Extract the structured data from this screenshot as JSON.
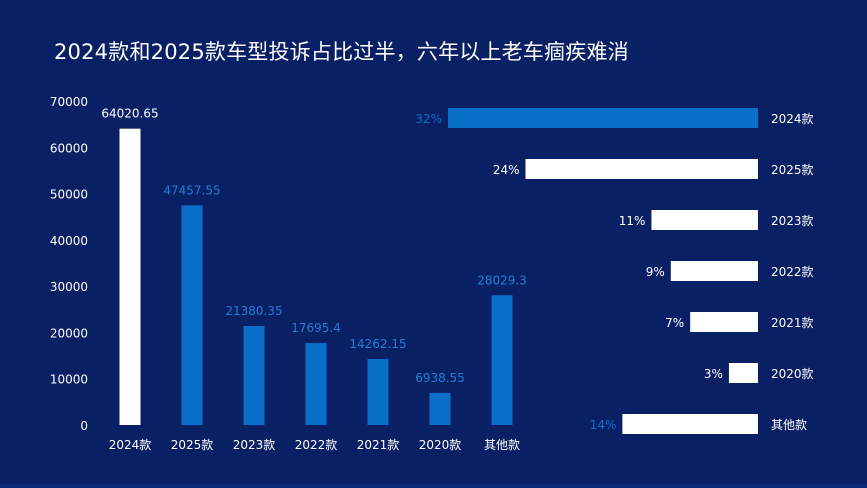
{
  "title": "2024款和2025款车型投诉占比过半，六年以上老车痼疾难消",
  "colors": {
    "background": "#0a2064",
    "white": "#ffffff",
    "blue": "#0a6fc9",
    "blue_label": "#1f7fd6"
  },
  "chart_data": [
    {
      "type": "bar",
      "categories": [
        "2024款",
        "2025款",
        "2023款",
        "2022款",
        "2021款",
        "2020款",
        "其他款"
      ],
      "values": [
        64020.65,
        47457.55,
        21380.35,
        17695.4,
        14262.15,
        6938.55,
        28029.3
      ],
      "value_labels": [
        "64020.65",
        "47457.55",
        "21380.35",
        "17695.4",
        "14262.15",
        "6938.55",
        "28029.3"
      ],
      "bar_colors": [
        "white",
        "blue",
        "blue",
        "blue",
        "blue",
        "blue",
        "blue"
      ],
      "ylim": [
        0,
        70000
      ],
      "yticks": [
        0,
        10000,
        20000,
        30000,
        40000,
        50000,
        60000,
        70000
      ],
      "title": "",
      "xlabel": "",
      "ylabel": "",
      "grid": false
    },
    {
      "type": "bar",
      "orientation": "horizontal",
      "categories": [
        "2024款",
        "2025款",
        "2023款",
        "2022款",
        "2021款",
        "2020款",
        "其他款"
      ],
      "values": [
        32,
        24,
        11,
        9,
        7,
        3,
        14
      ],
      "value_labels": [
        "32%",
        "24%",
        "11%",
        "9%",
        "7%",
        "3%",
        "14%"
      ],
      "bar_colors": [
        "blue",
        "white",
        "white",
        "white",
        "white",
        "white",
        "white"
      ],
      "label_colors": [
        "blue",
        "white",
        "white",
        "white",
        "white",
        "white",
        "blue"
      ],
      "xlim": [
        0,
        32
      ],
      "title": "",
      "xlabel": "",
      "ylabel": "",
      "grid": false
    }
  ]
}
